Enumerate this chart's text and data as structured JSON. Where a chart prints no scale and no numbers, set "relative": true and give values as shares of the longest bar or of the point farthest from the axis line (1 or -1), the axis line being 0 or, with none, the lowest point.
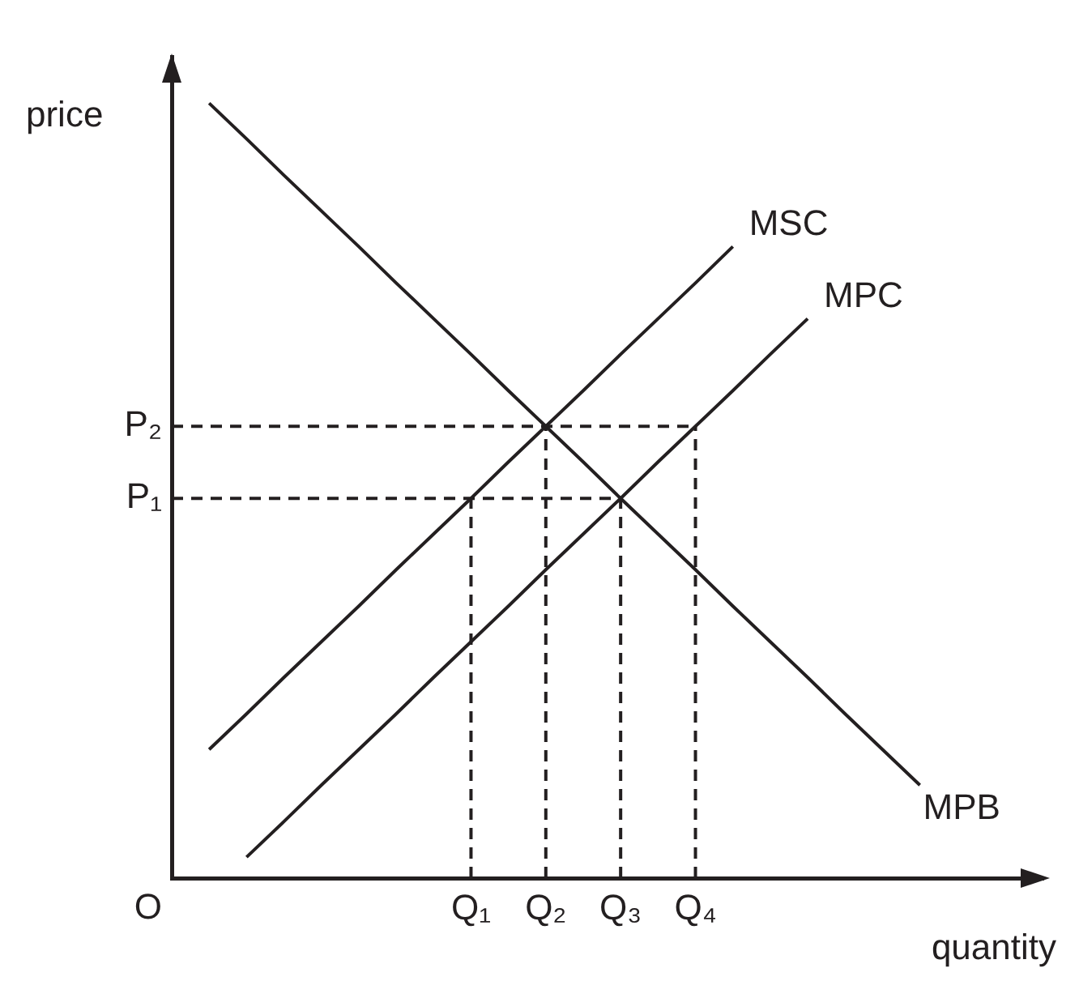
{
  "chart_data": {
    "type": "line",
    "xlabel": "quantity",
    "ylabel": "price",
    "relative": true,
    "legend": false,
    "marker": "none",
    "line_style": "solid",
    "annotations": [
      "O"
    ],
    "categories": [
      null,
      null,
      null,
      null,
      null,
      null,
      null,
      null,
      "Q₁",
      null,
      "Q₂",
      null,
      "Q₃",
      null,
      "Q₄",
      null,
      null,
      null,
      null,
      null,
      null,
      null,
      null,
      null
    ],
    "series": [
      {
        "name": "MSC",
        "color": "#231f20",
        "values": [
          null,
          0.166,
          0.212,
          0.259,
          0.305,
          0.351,
          0.398,
          0.444,
          0.49,
          0.537,
          0.583,
          0.629,
          0.676,
          0.722,
          0.768,
          0.815,
          null,
          null,
          null,
          null,
          null,
          null,
          null,
          null
        ]
      },
      {
        "name": "MPC",
        "color": "#231f20",
        "values": [
          null,
          null,
          0.027,
          0.073,
          0.12,
          0.166,
          0.212,
          0.259,
          0.305,
          0.351,
          0.398,
          0.444,
          0.49,
          0.537,
          0.583,
          0.629,
          0.676,
          0.722,
          null,
          null,
          null,
          null,
          null,
          null
        ]
      },
      {
        "name": "MPB",
        "color": "#231f20",
        "values": [
          null,
          1,
          0.954,
          0.907,
          0.861,
          0.815,
          0.768,
          0.722,
          0.676,
          0.629,
          0.583,
          0.537,
          0.49,
          0.444,
          0.398,
          0.351,
          0.305,
          0.259,
          0.212,
          0.166,
          0.12,
          null,
          null,
          null
        ]
      },
      {
        "name": "P₂",
        "color": "#231f20",
        "line_style": "dashed",
        "values": [
          0.583,
          0.583,
          0.583,
          0.583,
          0.583,
          0.583,
          0.583,
          0.583,
          0.583,
          0.583,
          0.583,
          0.583,
          0.583,
          0.583,
          0.583,
          null,
          null,
          null,
          null,
          null,
          null,
          null,
          null,
          null
        ]
      },
      {
        "name": "P₁",
        "color": "#231f20",
        "line_style": "dashed",
        "values": [
          0.49,
          0.49,
          0.49,
          0.49,
          0.49,
          0.49,
          0.49,
          0.49,
          0.49,
          0.49,
          0.49,
          0.49,
          0.49,
          null,
          null,
          null,
          null,
          null,
          null,
          null,
          null,
          null,
          null,
          null
        ]
      },
      {
        "color": "#231f20",
        "line_style": "dashed",
        "x": [
          "Q₁",
          "Q₁"
        ],
        "values": [
          0,
          0.49
        ]
      },
      {
        "color": "#231f20",
        "line_style": "dashed",
        "x": [
          "Q₂",
          "Q₂"
        ],
        "values": [
          0,
          0.583
        ]
      },
      {
        "color": "#231f20",
        "line_style": "dashed",
        "x": [
          "Q₃",
          "Q₃"
        ],
        "values": [
          0,
          0.49
        ]
      },
      {
        "color": "#231f20",
        "line_style": "dashed",
        "x": [
          "Q₄",
          "Q₄"
        ],
        "values": [
          0,
          0.583
        ]
      }
    ]
  }
}
